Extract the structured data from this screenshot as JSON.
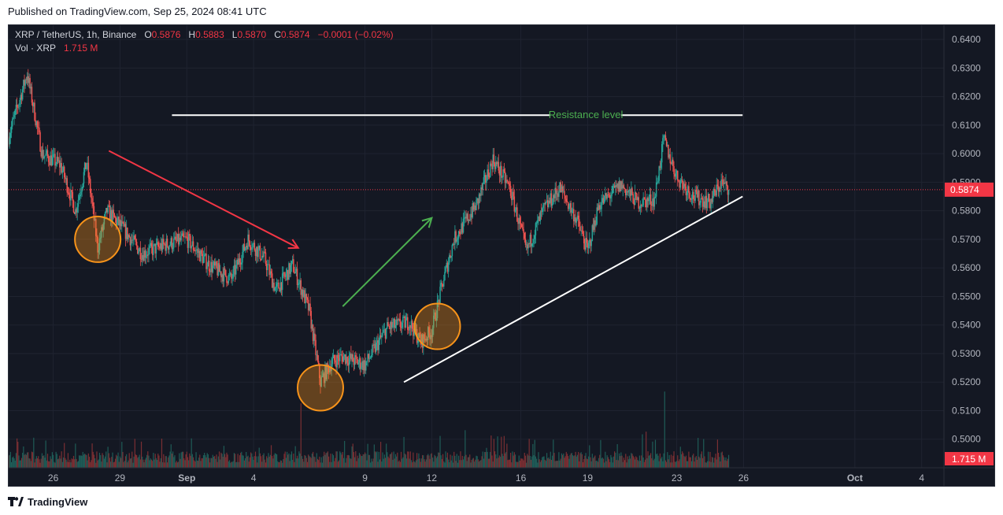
{
  "header": {
    "published": "Published on TradingView.com, Sep 25, 2024 08:41 UTC"
  },
  "legend": {
    "symbol": "XRP / TetherUS, 1h, Binance",
    "o_label": "O",
    "o_value": "0.5876",
    "h_label": "H",
    "h_value": "0.5883",
    "l_label": "L",
    "l_value": "0.5870",
    "c_label": "C",
    "c_value": "0.5874",
    "change": "−0.0001 (−0.02%)",
    "vol_label": "Vol · XRP",
    "vol_value": "1.715 M"
  },
  "colors": {
    "background": "#141823",
    "up": "#26a69a",
    "down": "#ef5350",
    "axis_text": "#b2b5be",
    "price_tag": "#f23645",
    "circle": "#f7931a",
    "trend_red": "#f23645",
    "trend_green": "#4caf50",
    "annotation_white": "#ffffff"
  },
  "chart_data": {
    "type": "candlestick",
    "series_name": "XRP / TetherUS, 1h, Binance",
    "x_range": [
      "2024-08-24",
      "2024-10-05"
    ],
    "y_range": [
      0.49,
      0.645
    ],
    "y_ticks": [
      "0.6400",
      "0.6300",
      "0.6200",
      "0.6100",
      "0.6000",
      "0.5900",
      "0.5800",
      "0.5700",
      "0.5600",
      "0.5500",
      "0.5400",
      "0.5300",
      "0.5200",
      "0.5100",
      "0.5000"
    ],
    "x_ticks": [
      {
        "date": "2024-08-26",
        "label": "26"
      },
      {
        "date": "2024-08-29",
        "label": "29"
      },
      {
        "date": "2024-09-01",
        "label": "Sep"
      },
      {
        "date": "2024-09-04",
        "label": "4"
      },
      {
        "date": "2024-09-09",
        "label": "9"
      },
      {
        "date": "2024-09-12",
        "label": "12"
      },
      {
        "date": "2024-09-16",
        "label": "16"
      },
      {
        "date": "2024-09-19",
        "label": "19"
      },
      {
        "date": "2024-09-23",
        "label": "23"
      },
      {
        "date": "2024-09-26",
        "label": "26"
      },
      {
        "date": "2024-10-01",
        "label": "Oct"
      },
      {
        "date": "2024-10-04",
        "label": "4"
      }
    ],
    "last_price": 0.5874,
    "last_price_label": "0.5874",
    "last_volume_label": "1.715 M",
    "price_path": [
      {
        "date": "2024-08-24T00:00",
        "price": 0.606
      },
      {
        "date": "2024-08-24T20:00",
        "price": 0.628
      },
      {
        "date": "2024-08-25T12:00",
        "price": 0.6
      },
      {
        "date": "2024-08-26T08:00",
        "price": 0.596
      },
      {
        "date": "2024-08-27T00:00",
        "price": 0.58
      },
      {
        "date": "2024-08-27T12:00",
        "price": 0.597
      },
      {
        "date": "2024-08-28T00:00",
        "price": 0.567
      },
      {
        "date": "2024-08-28T10:00",
        "price": 0.58
      },
      {
        "date": "2024-08-29T00:00",
        "price": 0.575
      },
      {
        "date": "2024-08-30T00:00",
        "price": 0.565
      },
      {
        "date": "2024-08-31T00:00",
        "price": 0.568
      },
      {
        "date": "2024-09-01T00:00",
        "price": 0.57
      },
      {
        "date": "2024-09-02T00:00",
        "price": 0.561
      },
      {
        "date": "2024-09-03T00:00",
        "price": 0.556
      },
      {
        "date": "2024-09-03T18:00",
        "price": 0.57
      },
      {
        "date": "2024-09-04T12:00",
        "price": 0.563
      },
      {
        "date": "2024-09-05T00:00",
        "price": 0.552
      },
      {
        "date": "2024-09-05T18:00",
        "price": 0.561
      },
      {
        "date": "2024-09-06T12:00",
        "price": 0.545
      },
      {
        "date": "2024-09-07T00:00",
        "price": 0.52
      },
      {
        "date": "2024-09-07T12:00",
        "price": 0.527
      },
      {
        "date": "2024-09-08T00:00",
        "price": 0.529
      },
      {
        "date": "2024-09-09T00:00",
        "price": 0.526
      },
      {
        "date": "2024-09-10T00:00",
        "price": 0.539
      },
      {
        "date": "2024-09-11T00:00",
        "price": 0.541
      },
      {
        "date": "2024-09-11T12:00",
        "price": 0.534
      },
      {
        "date": "2024-09-12T00:00",
        "price": 0.538
      },
      {
        "date": "2024-09-12T12:00",
        "price": 0.555
      },
      {
        "date": "2024-09-13T00:00",
        "price": 0.57
      },
      {
        "date": "2024-09-14T00:00",
        "price": 0.582
      },
      {
        "date": "2024-09-14T18:00",
        "price": 0.598
      },
      {
        "date": "2024-09-15T12:00",
        "price": 0.588
      },
      {
        "date": "2024-09-16T06:00",
        "price": 0.566
      },
      {
        "date": "2024-09-17T00:00",
        "price": 0.58
      },
      {
        "date": "2024-09-17T18:00",
        "price": 0.588
      },
      {
        "date": "2024-09-18T12:00",
        "price": 0.577
      },
      {
        "date": "2024-09-19T00:00",
        "price": 0.566
      },
      {
        "date": "2024-09-19T12:00",
        "price": 0.582
      },
      {
        "date": "2024-09-20T12:00",
        "price": 0.589
      },
      {
        "date": "2024-09-21T06:00",
        "price": 0.583
      },
      {
        "date": "2024-09-22T00:00",
        "price": 0.584
      },
      {
        "date": "2024-09-22T10:00",
        "price": 0.605
      },
      {
        "date": "2024-09-23T00:00",
        "price": 0.592
      },
      {
        "date": "2024-09-23T18:00",
        "price": 0.585
      },
      {
        "date": "2024-09-24T12:00",
        "price": 0.583
      },
      {
        "date": "2024-09-25T00:00",
        "price": 0.59
      },
      {
        "date": "2024-09-25T08:00",
        "price": 0.5874
      }
    ],
    "annotations": {
      "resistance_label": "Resistance level",
      "resistance_price": 0.6135,
      "resistance_segments": [
        {
          "from": "2024-08-31T08:00",
          "to": "2024-09-17T08:00"
        },
        {
          "from": "2024-09-20T12:00",
          "to": "2024-09-25T23:00"
        }
      ],
      "support_trendline": {
        "from": {
          "date": "2024-09-10T18:00",
          "price": 0.52
        },
        "to": {
          "date": "2024-09-25T23:00",
          "price": 0.585
        }
      },
      "downtrend_arrow": {
        "from": {
          "date": "2024-08-28T12:00",
          "price": 0.601
        },
        "to": {
          "date": "2024-09-06T00:00",
          "price": 0.567
        }
      },
      "uptrend_arrow": {
        "from": {
          "date": "2024-09-08T00:00",
          "price": 0.5465
        },
        "to": {
          "date": "2024-09-12T00:00",
          "price": 0.5775
        }
      },
      "circles": [
        {
          "date": "2024-08-28T00:00",
          "price": 0.57
        },
        {
          "date": "2024-09-07T00:00",
          "price": 0.518
        },
        {
          "date": "2024-09-12T06:00",
          "price": 0.5395
        }
      ]
    }
  },
  "branding": {
    "footer_logo": "TradingView"
  }
}
